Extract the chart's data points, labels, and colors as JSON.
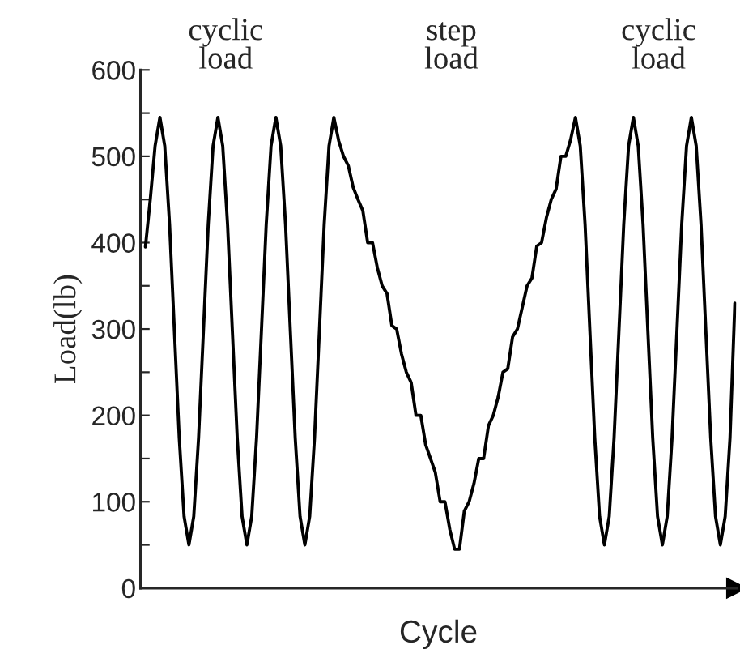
{
  "chart_data": {
    "type": "line",
    "xlabel": "Cycle",
    "ylabel": "Load(lb)",
    "annotations": [
      "cyclic\nload",
      "step\nload",
      "cyclic\nload"
    ],
    "categories": [
      null,
      null,
      null,
      null,
      null,
      null,
      null,
      null,
      null,
      null,
      null,
      null,
      null,
      null,
      null,
      null,
      null,
      null,
      null,
      null,
      null,
      null,
      null,
      null,
      null,
      null,
      null,
      null,
      null,
      null,
      null,
      null,
      null,
      null,
      null,
      null,
      null,
      null,
      null,
      null,
      null,
      null,
      null,
      null,
      null,
      null,
      null,
      null,
      null,
      null,
      null,
      null,
      null,
      null,
      null,
      null,
      null,
      null,
      null,
      null,
      null,
      null,
      null,
      null,
      null,
      null,
      null,
      null,
      null,
      null,
      null,
      null,
      null,
      null,
      null,
      null,
      null,
      null,
      null,
      null,
      null,
      null,
      null,
      null,
      null,
      null,
      null,
      null,
      null,
      null,
      null,
      null,
      null,
      null,
      null,
      null,
      null,
      null,
      null,
      null,
      null,
      null,
      null,
      null,
      null,
      null,
      null,
      null,
      null,
      null,
      null,
      null,
      null,
      null,
      null,
      null,
      null,
      null,
      null,
      null,
      null,
      null,
      null
    ],
    "series": [
      {
        "color": "#000000",
        "values": [
          395,
          450,
          512,
          545,
          512,
          421,
          297,
          174,
          83,
          50,
          83,
          174,
          297,
          421,
          512,
          545,
          512,
          421,
          297,
          174,
          83,
          50,
          83,
          174,
          297,
          421,
          512,
          545,
          512,
          421,
          297,
          174,
          83,
          50,
          83,
          174,
          297,
          421,
          512,
          545,
          518,
          500,
          489,
          464,
          450,
          437,
          400,
          400,
          371,
          350,
          341,
          304,
          300,
          271,
          250,
          238,
          200,
          200,
          166,
          150,
          134,
          100,
          100,
          68,
          45,
          45,
          89,
          100,
          121,
          150,
          150,
          188,
          200,
          221,
          250,
          254,
          291,
          300,
          325,
          350,
          359,
          396,
          400,
          429,
          450,
          462,
          500,
          500,
          519,
          545,
          512,
          421,
          297,
          174,
          83,
          50,
          83,
          174,
          297,
          421,
          512,
          545,
          512,
          421,
          297,
          174,
          83,
          50,
          83,
          174,
          297,
          421,
          512,
          545,
          512,
          421,
          297,
          174,
          83,
          50,
          83,
          174,
          330
        ]
      }
    ],
    "ylim": [
      0,
      600
    ],
    "yticks": [
      0,
      {
        "value": 50,
        "label": null
      },
      100,
      {
        "value": 150,
        "label": null
      },
      200,
      {
        "value": 250,
        "label": null
      },
      300,
      {
        "value": 350,
        "label": null
      },
      400,
      {
        "value": 450,
        "label": null
      },
      500,
      {
        "value": 550,
        "label": null
      },
      600
    ],
    "tick_labels": "y",
    "grid": false,
    "legend": false,
    "marker": "none",
    "line_style": "solid"
  }
}
